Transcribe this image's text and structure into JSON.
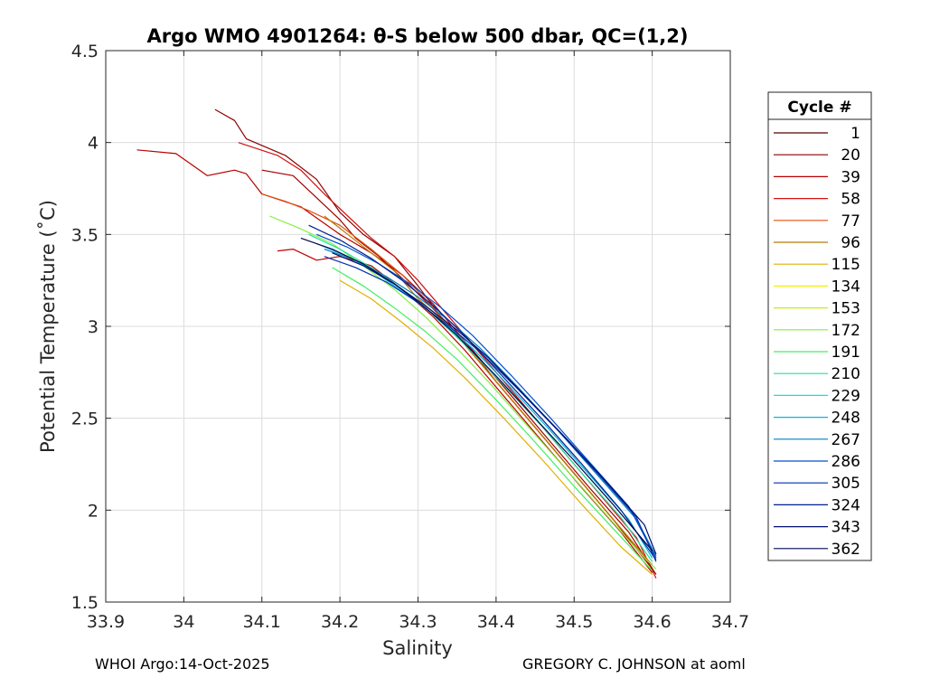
{
  "chart_data": {
    "type": "line",
    "title": "Argo WMO 4901264: θ-S below 500 dbar,  QC=(1,2)",
    "xlabel": "Salinity",
    "ylabel": "Potential Temperature (˚C)",
    "xlim": [
      33.9,
      34.7
    ],
    "ylim": [
      1.5,
      4.5
    ],
    "xticks": [
      "33.9",
      "34",
      "34.1",
      "34.2",
      "34.3",
      "34.4",
      "34.5",
      "34.6",
      "34.7"
    ],
    "yticks": [
      "1.5",
      "2",
      "2.5",
      "3",
      "3.5",
      "4",
      "4.5"
    ],
    "grid": true,
    "legend": {
      "title": "Cycle #",
      "placement": "right-outside",
      "entries": [
        {
          "label": "1",
          "color": "#550000"
        },
        {
          "label": "20",
          "color": "#8a0000"
        },
        {
          "label": "39",
          "color": "#b80000"
        },
        {
          "label": "58",
          "color": "#d41010"
        },
        {
          "label": "77",
          "color": "#e05010"
        },
        {
          "label": "96",
          "color": "#b87a00"
        },
        {
          "label": "115",
          "color": "#e0b000"
        },
        {
          "label": "134",
          "color": "#f0f000"
        },
        {
          "label": "153",
          "color": "#c0f020"
        },
        {
          "label": "172",
          "color": "#80f040"
        },
        {
          "label": "191",
          "color": "#40f060"
        },
        {
          "label": "210",
          "color": "#20e0a0"
        },
        {
          "label": "229",
          "color": "#00e8e0"
        },
        {
          "label": "248",
          "color": "#00b8d8"
        },
        {
          "label": "267",
          "color": "#0080c0"
        },
        {
          "label": "286",
          "color": "#0050d0"
        },
        {
          "label": "305",
          "color": "#0030b0"
        },
        {
          "label": "324",
          "color": "#002090"
        },
        {
          "label": "343",
          "color": "#001070"
        },
        {
          "label": "362",
          "color": "#000850"
        }
      ]
    },
    "series": [
      {
        "x": [
          34.04,
          34.065,
          34.08,
          34.13,
          34.17,
          34.2,
          34.23,
          34.27,
          34.3,
          34.33,
          34.36,
          34.4,
          34.45,
          34.5,
          34.55,
          34.6
        ],
        "y": [
          4.18,
          4.12,
          4.02,
          3.93,
          3.8,
          3.62,
          3.5,
          3.38,
          3.22,
          3.05,
          2.9,
          2.7,
          2.45,
          2.2,
          1.95,
          1.7
        ],
        "color": "#8a0000"
      },
      {
        "x": [
          33.94,
          33.99,
          34.03,
          34.065,
          34.08,
          34.1,
          34.15,
          34.2,
          34.24,
          34.28,
          34.32,
          34.36,
          34.4,
          34.45,
          34.5,
          34.55,
          34.6
        ],
        "y": [
          3.96,
          3.94,
          3.82,
          3.85,
          3.83,
          3.72,
          3.65,
          3.5,
          3.4,
          3.28,
          3.12,
          2.92,
          2.7,
          2.45,
          2.2,
          1.95,
          1.68
        ],
        "color": "#b80000"
      },
      {
        "x": [
          34.07,
          34.12,
          34.15,
          34.18,
          34.21,
          34.24,
          34.27,
          34.3,
          34.34,
          34.38,
          34.43,
          34.48,
          34.53,
          34.58,
          34.605
        ],
        "y": [
          4.0,
          3.93,
          3.85,
          3.72,
          3.6,
          3.48,
          3.38,
          3.25,
          3.05,
          2.85,
          2.6,
          2.35,
          2.1,
          1.85,
          1.63
        ],
        "color": "#d41010"
      },
      {
        "x": [
          34.1,
          34.14,
          34.17,
          34.2,
          34.22,
          34.25,
          34.29,
          34.33,
          34.37,
          34.42,
          34.47,
          34.52,
          34.57,
          34.605
        ],
        "y": [
          3.85,
          3.82,
          3.7,
          3.58,
          3.48,
          3.38,
          3.22,
          3.05,
          2.87,
          2.62,
          2.37,
          2.12,
          1.88,
          1.65
        ],
        "color": "#a00000"
      },
      {
        "x": [
          34.12,
          34.14,
          34.17,
          34.2,
          34.24,
          34.28,
          34.32,
          34.36,
          34.41,
          34.46,
          34.51,
          34.56,
          34.6
        ],
        "y": [
          3.41,
          3.42,
          3.36,
          3.38,
          3.33,
          3.2,
          3.05,
          2.87,
          2.62,
          2.37,
          2.12,
          1.88,
          1.66
        ],
        "color": "#c00000"
      },
      {
        "x": [
          34.1,
          34.13,
          34.16,
          34.2,
          34.24,
          34.28,
          34.32,
          34.36,
          34.41,
          34.46,
          34.51,
          34.56,
          34.6
        ],
        "y": [
          3.72,
          3.68,
          3.63,
          3.55,
          3.42,
          3.28,
          3.1,
          2.9,
          2.65,
          2.4,
          2.15,
          1.9,
          1.7
        ],
        "color": "#e05010"
      },
      {
        "x": [
          34.18,
          34.21,
          34.24,
          34.27,
          34.3,
          34.34,
          34.38,
          34.43,
          34.48,
          34.53,
          34.58,
          34.6
        ],
        "y": [
          3.6,
          3.5,
          3.4,
          3.3,
          3.15,
          3.0,
          2.8,
          2.55,
          2.3,
          2.05,
          1.8,
          1.7
        ],
        "color": "#b87a00"
      },
      {
        "x": [
          34.2,
          34.24,
          34.28,
          34.32,
          34.36,
          34.41,
          34.46,
          34.51,
          34.56,
          34.6
        ],
        "y": [
          3.25,
          3.15,
          3.02,
          2.88,
          2.72,
          2.5,
          2.27,
          2.03,
          1.8,
          1.65
        ],
        "color": "#e0b000"
      },
      {
        "x": [
          34.11,
          34.15,
          34.19,
          34.23,
          34.27,
          34.31,
          34.35,
          34.39,
          34.44,
          34.49,
          34.54,
          34.59,
          34.605
        ],
        "y": [
          3.6,
          3.53,
          3.45,
          3.33,
          3.2,
          3.05,
          2.88,
          2.7,
          2.46,
          2.22,
          1.98,
          1.74,
          1.68
        ],
        "color": "#80f040"
      },
      {
        "x": [
          34.19,
          34.23,
          34.27,
          34.31,
          34.35,
          34.4,
          34.45,
          34.5,
          34.55,
          34.6
        ],
        "y": [
          3.32,
          3.22,
          3.1,
          2.97,
          2.82,
          2.6,
          2.37,
          2.13,
          1.9,
          1.67
        ],
        "color": "#40f060"
      },
      {
        "x": [
          34.16,
          34.2,
          34.24,
          34.28,
          34.32,
          34.36,
          34.41,
          34.46,
          34.51,
          34.56,
          34.6
        ],
        "y": [
          3.5,
          3.42,
          3.32,
          3.2,
          3.06,
          2.9,
          2.68,
          2.45,
          2.2,
          1.96,
          1.72
        ],
        "color": "#20e0a0"
      },
      {
        "x": [
          34.17,
          34.21,
          34.25,
          34.29,
          34.33,
          34.37,
          34.42,
          34.47,
          34.52,
          34.57,
          34.6
        ],
        "y": [
          3.45,
          3.38,
          3.28,
          3.16,
          3.03,
          2.88,
          2.66,
          2.43,
          2.19,
          1.95,
          1.74
        ],
        "color": "#00b8d8"
      },
      {
        "x": [
          34.18,
          34.22,
          34.26,
          34.3,
          34.34,
          34.38,
          34.43,
          34.48,
          34.53,
          34.58,
          34.605
        ],
        "y": [
          3.42,
          3.36,
          3.27,
          3.16,
          3.03,
          2.88,
          2.66,
          2.43,
          2.19,
          1.95,
          1.75
        ],
        "color": "#0080c0"
      },
      {
        "x": [
          34.17,
          34.21,
          34.25,
          34.29,
          34.33,
          34.37,
          34.42,
          34.47,
          34.52,
          34.57,
          34.605
        ],
        "y": [
          3.5,
          3.43,
          3.34,
          3.23,
          3.1,
          2.95,
          2.73,
          2.5,
          2.26,
          2.02,
          1.74
        ],
        "color": "#0050d0"
      },
      {
        "x": [
          34.18,
          34.22,
          34.26,
          34.3,
          34.34,
          34.38,
          34.43,
          34.48,
          34.53,
          34.58,
          34.605
        ],
        "y": [
          3.38,
          3.32,
          3.24,
          3.13,
          3.0,
          2.86,
          2.65,
          2.43,
          2.2,
          1.96,
          1.72
        ],
        "color": "#0030b0"
      },
      {
        "x": [
          34.16,
          34.2,
          34.24,
          34.28,
          34.32,
          34.36,
          34.41,
          34.46,
          34.51,
          34.56,
          34.605
        ],
        "y": [
          3.55,
          3.47,
          3.37,
          3.25,
          3.11,
          2.95,
          2.72,
          2.49,
          2.25,
          2.0,
          1.73
        ],
        "color": "#002090"
      },
      {
        "x": [
          34.19,
          34.23,
          34.27,
          34.31,
          34.35,
          34.39,
          34.44,
          34.49,
          34.54,
          34.59,
          34.605
        ],
        "y": [
          3.4,
          3.33,
          3.23,
          3.11,
          2.98,
          2.83,
          2.61,
          2.39,
          2.16,
          1.92,
          1.76
        ],
        "color": "#001070"
      },
      {
        "x": [
          34.15,
          34.19,
          34.23,
          34.27,
          34.31,
          34.35,
          34.4,
          34.45,
          34.5,
          34.55,
          34.6
        ],
        "y": [
          3.48,
          3.42,
          3.34,
          3.23,
          3.1,
          2.95,
          2.73,
          2.5,
          2.27,
          2.03,
          1.78
        ],
        "color": "#000850"
      }
    ]
  },
  "footer": {
    "left": "WHOI Argo:14-Oct-2025",
    "right": "GREGORY C. JOHNSON at aoml"
  }
}
